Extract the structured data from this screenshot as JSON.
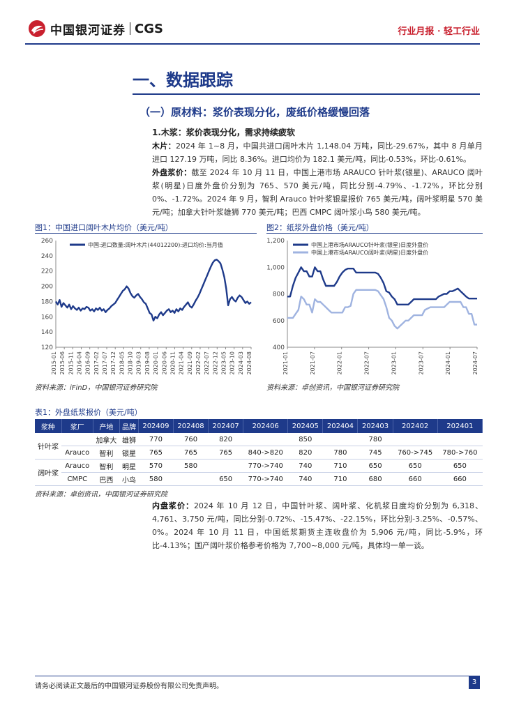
{
  "header": {
    "logo_cn": "中国银河证券",
    "logo_en": "CGS",
    "report_type": "行业月报 · 轻工行业"
  },
  "section": {
    "h1": "一、数据跟踪",
    "h2": "（一）原材料：浆价表现分化，废纸价格缓慢回落",
    "h3": "1.木浆：浆价表现分化，需求持续疲软"
  },
  "paragraphs": {
    "wood_label": "木片：",
    "wood_text": "2024 年 1~8 月，中国共进口阔叶木片 1,148.04 万吨，同比-29.67%，其中 8 月单月进口 127.19 万吨，同比 8.36%。进口均价为 182.1 美元/吨，同比-0.53%，环比-0.61%。",
    "ext_label": "外盘浆价：",
    "ext_text": "截至 2024 年 10 月 11 日，中国上港市场 ARAUCO 针叶浆(银星)、ARAUCO 阔叶浆(明星)日度外盘价分别为 765、570 美元/吨，同比分别-4.79%、-1.72%，环比分别 0%、-1.72%。2024 年 9 月，智利 Arauco 针叶浆银星报价 765 美元/吨，阔叶浆明星 570 美元/吨；加拿大针叶浆雄狮 770 美元/吨；巴西 CMPC 阔叶浆小鸟 580 美元/吨。",
    "int_label": "内盘浆价：",
    "int_text": "2024 年 10 月 12 日，中国针叶浆、阔叶浆、化机浆日度均价分别为 6,318、4,761、3,750 元/吨，同比分别-0.72%、-15.47%、-22.15%，环比分别-3.25%、-0.57%、0%。2024 年 10 月 11 日，中国纸浆期货主连收盘价为 5,906 元/吨，同比-5.9%，环比-4.13%；国产阔叶浆价格参考价格为 7,700~8,000 元/吨，具体均一单一谈。"
  },
  "fig1": {
    "title": "图1：中国进口阔叶木片均价（美元/吨）",
    "source": "资料来源：iFinD，中国银河证券研究院"
  },
  "fig2": {
    "title": "图2：纸浆外盘价格（美元/吨）",
    "source": "资料来源：卓创资讯，中国银河证券研究院"
  },
  "table": {
    "title": "表1：外盘纸浆报价（美元/吨）",
    "source": "资料来源：卓创资讯，中国银河证券研究院",
    "headers": [
      "浆种",
      "浆厂",
      "产地",
      "品牌",
      "202409",
      "202408",
      "202407",
      "202406",
      "202405",
      "202404",
      "202403",
      "202402",
      "202401"
    ],
    "rows": [
      [
        "针叶浆",
        "",
        "加拿大",
        "雄狮",
        "770",
        "760",
        "820",
        "",
        "850",
        "",
        "780",
        "",
        ""
      ],
      [
        "",
        "Arauco",
        "智利",
        "银星",
        "765",
        "765",
        "765",
        "840->820",
        "820",
        "780",
        "745",
        "760->745",
        "780->760"
      ],
      [
        "阔叶浆",
        "Arauco",
        "智利",
        "明星",
        "570",
        "580",
        "",
        "770->740",
        "740",
        "710",
        "650",
        "650",
        "650"
      ],
      [
        "",
        "CMPC",
        "巴西",
        "小鸟",
        "580",
        "",
        "650",
        "770->740",
        "740",
        "710",
        "680",
        "660",
        "660"
      ]
    ]
  },
  "footer": {
    "disclaimer": "请务必阅读正文最后的中国银河证券股份有限公司免责声明。",
    "page": "3"
  },
  "chart_data": [
    {
      "type": "line",
      "legend_position": "top-left",
      "x_ticks": [
        "2015-01",
        "2015-06",
        "2015-11",
        "2016-04",
        "2016-09",
        "2017-02",
        "2017-07",
        "2017-12",
        "2018-05",
        "2018-10",
        "2019-03",
        "2019-08",
        "2020-01",
        "2020-06",
        "2020-11",
        "2021-04",
        "2021-09",
        "2022-02",
        "2022-07",
        "2022-12",
        "2023-05",
        "2023-10",
        "2024-03",
        "2024-08"
      ],
      "ylim": [
        120,
        260
      ],
      "y_ticks": [
        120,
        140,
        160,
        180,
        200,
        220,
        240,
        260
      ],
      "series": [
        {
          "name": "中国:进口数量:阔叶木片(44012200):进口均价:当月值",
          "color": "#1e3a8a",
          "values": [
            180,
            176,
            182,
            173,
            178,
            175,
            172,
            176,
            170,
            174,
            171,
            169,
            172,
            168,
            171,
            170,
            173,
            172,
            168,
            170,
            167,
            171,
            169,
            172,
            168,
            170,
            166,
            169,
            171,
            174,
            176,
            178,
            182,
            186,
            190,
            194,
            196,
            200,
            197,
            191,
            187,
            185,
            188,
            190,
            186,
            183,
            179,
            177,
            171,
            165,
            163,
            155,
            160,
            158,
            163,
            166,
            162,
            165,
            168,
            170,
            166,
            168,
            165,
            170,
            167,
            171,
            169,
            173,
            176,
            179,
            174,
            172,
            176,
            181,
            185,
            190,
            196,
            202,
            208,
            214,
            220,
            226,
            231,
            234,
            235,
            233,
            230,
            222,
            212,
            197,
            175,
            183,
            186,
            182,
            180,
            185,
            188,
            186,
            182,
            178,
            180,
            177,
            179
          ]
        }
      ]
    },
    {
      "type": "line",
      "legend_position": "top-left",
      "x_ticks": [
        "2021-01",
        "2021-07",
        "2022-01",
        "2022-07",
        "2023-01",
        "2023-07",
        "2024-01",
        "2024-07"
      ],
      "ylim": [
        400,
        1200
      ],
      "y_ticks": [
        400,
        600,
        800,
        1000,
        1200
      ],
      "series": [
        {
          "name": "中国上港市场ARAUCO针叶浆(银星)日度外盘价",
          "color": "#1e3a8a",
          "values": [
            780,
            780,
            860,
            920,
            960,
            1000,
            970,
            970,
            930,
            930,
            1000,
            970,
            970,
            910,
            860,
            860,
            860,
            860,
            890,
            930,
            960,
            980,
            990,
            990,
            990,
            960,
            960,
            960,
            960,
            960,
            960,
            960,
            960,
            950,
            920,
            880,
            820,
            810,
            780,
            760,
            720,
            720,
            720,
            720,
            720,
            740,
            760,
            760,
            760,
            760,
            760,
            760,
            760,
            760,
            760,
            780,
            790,
            800,
            800,
            820,
            820,
            830,
            840,
            820,
            800,
            780,
            765,
            765,
            765,
            765
          ]
        },
        {
          "name": "中国上港市场ARAUCO阔叶浆(明星)日度外盘价",
          "color": "#9fb3e0",
          "values": [
            620,
            620,
            620,
            650,
            680,
            780,
            760,
            720,
            720,
            660,
            760,
            740,
            740,
            720,
            700,
            680,
            660,
            660,
            660,
            660,
            660,
            700,
            700,
            710,
            800,
            830,
            830,
            830,
            830,
            830,
            830,
            830,
            830,
            820,
            790,
            760,
            700,
            620,
            600,
            560,
            540,
            560,
            580,
            600,
            600,
            620,
            640,
            640,
            640,
            640,
            680,
            690,
            700,
            700,
            700,
            700,
            700,
            700,
            720,
            740,
            740,
            740,
            740,
            740,
            700,
            700,
            650,
            650,
            570,
            570
          ]
        }
      ]
    }
  ]
}
